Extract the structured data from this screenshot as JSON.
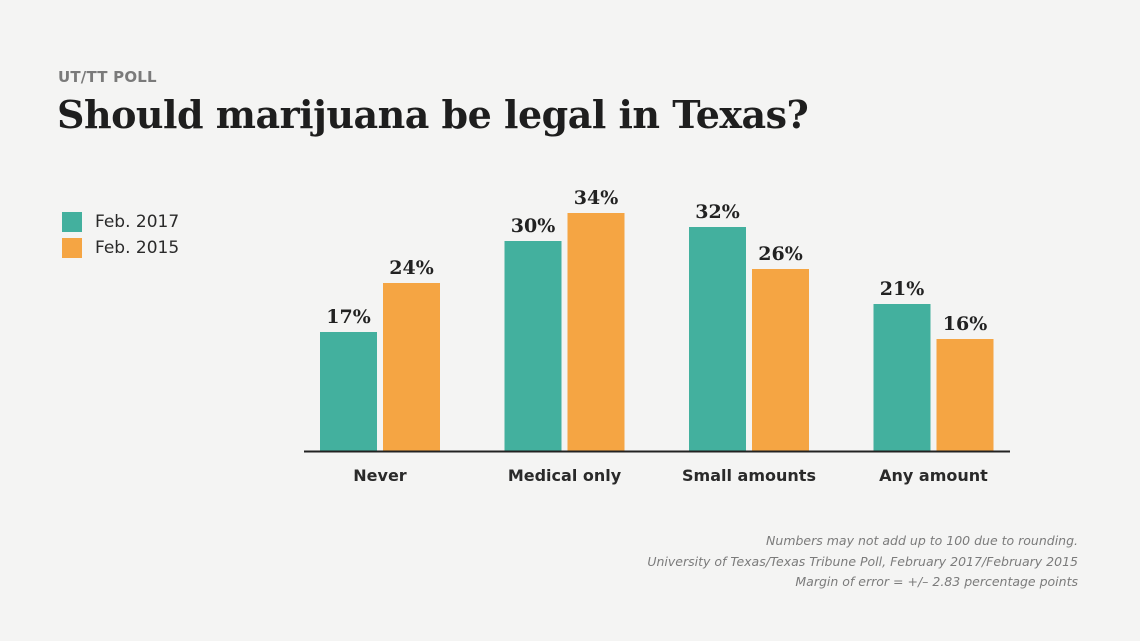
{
  "header": {
    "kicker": "UT/TT POLL",
    "title": "Should marijuana be legal in Texas?"
  },
  "colors": {
    "feb2017": "#43b09e",
    "feb2015": "#f5a543",
    "axis": "#222222",
    "background": "#f4f4f3"
  },
  "legend": [
    {
      "label": "Feb. 2017",
      "color": "#43b09e"
    },
    {
      "label": "Feb. 2015",
      "color": "#f5a543"
    }
  ],
  "chart_data": {
    "type": "bar",
    "title": "Should marijuana be legal in Texas?",
    "categories": [
      "Never",
      "Medical only",
      "Small amounts",
      "Any amount"
    ],
    "series": [
      {
        "name": "Feb. 2017",
        "color": "#43b09e",
        "values": [
          17,
          30,
          32,
          21
        ],
        "labels": [
          "17%",
          "30%",
          "32%",
          "21%"
        ]
      },
      {
        "name": "Feb. 2015",
        "color": "#f5a543",
        "values": [
          24,
          34,
          26,
          16
        ],
        "labels": [
          "24%",
          "34%",
          "26%",
          "16%"
        ]
      }
    ],
    "xlabel": "",
    "ylabel": "",
    "ylim": [
      0,
      34
    ],
    "grid": false,
    "legend_position": "top-left",
    "value_format": "percent"
  },
  "notes": [
    "Numbers may not add up to 100 due to rounding.",
    "University of Texas/Texas Tribune Poll, February 2017/February 2015",
    "Margin of error = +/– 2.83 percentage points"
  ]
}
